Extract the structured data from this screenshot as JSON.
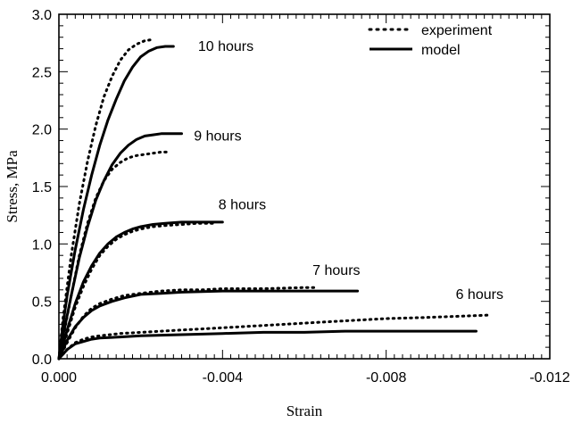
{
  "chart_data": {
    "type": "line",
    "title": "",
    "xlabel": "Strain",
    "ylabel": "Stress, MPa",
    "xlim": [
      0.0,
      -0.012
    ],
    "ylim": [
      0.0,
      3.0
    ],
    "x_ticks": [
      "0.000",
      "-0.004",
      "-0.008",
      "-0.012"
    ],
    "y_ticks": [
      "0.0",
      "0.5",
      "1.0",
      "1.5",
      "2.0",
      "2.5",
      "3.0"
    ],
    "grid": false,
    "legend_position": "top-right",
    "legend": [
      {
        "label": "experiment",
        "style": "dotted"
      },
      {
        "label": "model",
        "style": "solid"
      }
    ],
    "annotations": [
      {
        "text": "10 hours",
        "x": -0.0034,
        "y": 2.68
      },
      {
        "text": "9 hours",
        "x": -0.0033,
        "y": 1.9
      },
      {
        "text": "8 hours",
        "x": -0.0039,
        "y": 1.3
      },
      {
        "text": "7 hours",
        "x": -0.0062,
        "y": 0.73
      },
      {
        "text": "6 hours",
        "x": -0.0097,
        "y": 0.52
      }
    ],
    "series": [
      {
        "group": "10 hours",
        "kind": "model",
        "x": [
          0,
          -0.0001,
          -0.0002,
          -0.0004,
          -0.0006,
          -0.0008,
          -0.001,
          -0.0012,
          -0.0014,
          -0.0016,
          -0.0018,
          -0.002,
          -0.0022,
          -0.0024,
          -0.0026,
          -0.0028
        ],
        "y": [
          0,
          0.3,
          0.55,
          0.95,
          1.3,
          1.6,
          1.86,
          2.08,
          2.26,
          2.42,
          2.54,
          2.63,
          2.68,
          2.71,
          2.72,
          2.72
        ]
      },
      {
        "group": "10 hours",
        "kind": "experiment",
        "x": [
          0,
          -0.0001,
          -0.0003,
          -0.0005,
          -0.0007,
          -0.0009,
          -0.0011,
          -0.0013,
          -0.0015,
          -0.0017,
          -0.0019,
          -0.0021,
          -0.0023
        ],
        "y": [
          0,
          0.35,
          0.9,
          1.35,
          1.72,
          2.03,
          2.28,
          2.46,
          2.6,
          2.69,
          2.74,
          2.77,
          2.78
        ]
      },
      {
        "group": "9 hours",
        "kind": "model",
        "x": [
          0,
          -0.0001,
          -0.0003,
          -0.0005,
          -0.0007,
          -0.0009,
          -0.0011,
          -0.0013,
          -0.0015,
          -0.0017,
          -0.0019,
          -0.0021,
          -0.0023,
          -0.0025,
          -0.0027,
          -0.003
        ],
        "y": [
          0,
          0.2,
          0.55,
          0.88,
          1.15,
          1.38,
          1.55,
          1.69,
          1.79,
          1.86,
          1.91,
          1.94,
          1.95,
          1.96,
          1.96,
          1.96
        ]
      },
      {
        "group": "9 hours",
        "kind": "experiment",
        "x": [
          0,
          -0.0001,
          -0.0003,
          -0.0005,
          -0.0007,
          -0.0009,
          -0.0011,
          -0.0013,
          -0.0015,
          -0.0017,
          -0.0019,
          -0.0021,
          -0.0023,
          -0.0025,
          -0.0027
        ],
        "y": [
          0,
          0.18,
          0.55,
          0.9,
          1.18,
          1.4,
          1.55,
          1.65,
          1.71,
          1.75,
          1.77,
          1.78,
          1.79,
          1.8,
          1.8
        ]
      },
      {
        "group": "8 hours",
        "kind": "model",
        "x": [
          0,
          -0.0001,
          -0.0002,
          -0.0004,
          -0.0006,
          -0.0008,
          -0.001,
          -0.0012,
          -0.0014,
          -0.0016,
          -0.0018,
          -0.002,
          -0.0023,
          -0.0026,
          -0.003,
          -0.0035,
          -0.004
        ],
        "y": [
          0,
          0.12,
          0.25,
          0.48,
          0.67,
          0.81,
          0.92,
          1.0,
          1.06,
          1.1,
          1.13,
          1.15,
          1.17,
          1.18,
          1.19,
          1.19,
          1.19
        ]
      },
      {
        "group": "8 hours",
        "kind": "experiment",
        "x": [
          0,
          -0.0001,
          -0.0002,
          -0.0004,
          -0.0006,
          -0.0008,
          -0.001,
          -0.0012,
          -0.0014,
          -0.0016,
          -0.0018,
          -0.002,
          -0.0023,
          -0.0026,
          -0.003,
          -0.0034,
          -0.0038
        ],
        "y": [
          0,
          0.1,
          0.22,
          0.45,
          0.63,
          0.78,
          0.9,
          0.98,
          1.04,
          1.08,
          1.11,
          1.13,
          1.15,
          1.16,
          1.17,
          1.18,
          1.18
        ]
      },
      {
        "group": "7 hours",
        "kind": "model",
        "x": [
          0,
          -0.0001,
          -0.0002,
          -0.0004,
          -0.0006,
          -0.0008,
          -0.001,
          -0.0013,
          -0.0016,
          -0.002,
          -0.0025,
          -0.003,
          -0.004,
          -0.005,
          -0.006,
          -0.0073
        ],
        "y": [
          0,
          0.08,
          0.16,
          0.28,
          0.36,
          0.42,
          0.46,
          0.5,
          0.53,
          0.56,
          0.57,
          0.58,
          0.59,
          0.59,
          0.59,
          0.59
        ]
      },
      {
        "group": "7 hours",
        "kind": "experiment",
        "x": [
          0,
          -0.0001,
          -0.0002,
          -0.0004,
          -0.0006,
          -0.0008,
          -0.001,
          -0.0013,
          -0.0016,
          -0.002,
          -0.0025,
          -0.003,
          -0.0035,
          -0.004,
          -0.005,
          -0.006,
          -0.0063
        ],
        "y": [
          0,
          0.07,
          0.14,
          0.27,
          0.37,
          0.44,
          0.48,
          0.52,
          0.55,
          0.57,
          0.59,
          0.6,
          0.6,
          0.61,
          0.61,
          0.62,
          0.62
        ]
      },
      {
        "group": "6 hours",
        "kind": "model",
        "x": [
          0,
          -0.0001,
          -0.0002,
          -0.0004,
          -0.0006,
          -0.0008,
          -0.001,
          -0.0015,
          -0.002,
          -0.003,
          -0.004,
          -0.005,
          -0.006,
          -0.007,
          -0.008,
          -0.009,
          -0.0102
        ],
        "y": [
          0,
          0.04,
          0.08,
          0.13,
          0.15,
          0.17,
          0.18,
          0.19,
          0.2,
          0.21,
          0.22,
          0.23,
          0.23,
          0.24,
          0.24,
          0.24,
          0.24
        ]
      },
      {
        "group": "6 hours",
        "kind": "experiment",
        "x": [
          0,
          -0.0001,
          -0.0002,
          -0.0004,
          -0.0006,
          -0.0008,
          -0.001,
          -0.0015,
          -0.002,
          -0.003,
          -0.004,
          -0.005,
          -0.006,
          -0.007,
          -0.008,
          -0.009,
          -0.0105
        ],
        "y": [
          0,
          0.04,
          0.08,
          0.14,
          0.17,
          0.19,
          0.2,
          0.22,
          0.23,
          0.25,
          0.27,
          0.29,
          0.31,
          0.33,
          0.35,
          0.36,
          0.38
        ]
      }
    ]
  }
}
